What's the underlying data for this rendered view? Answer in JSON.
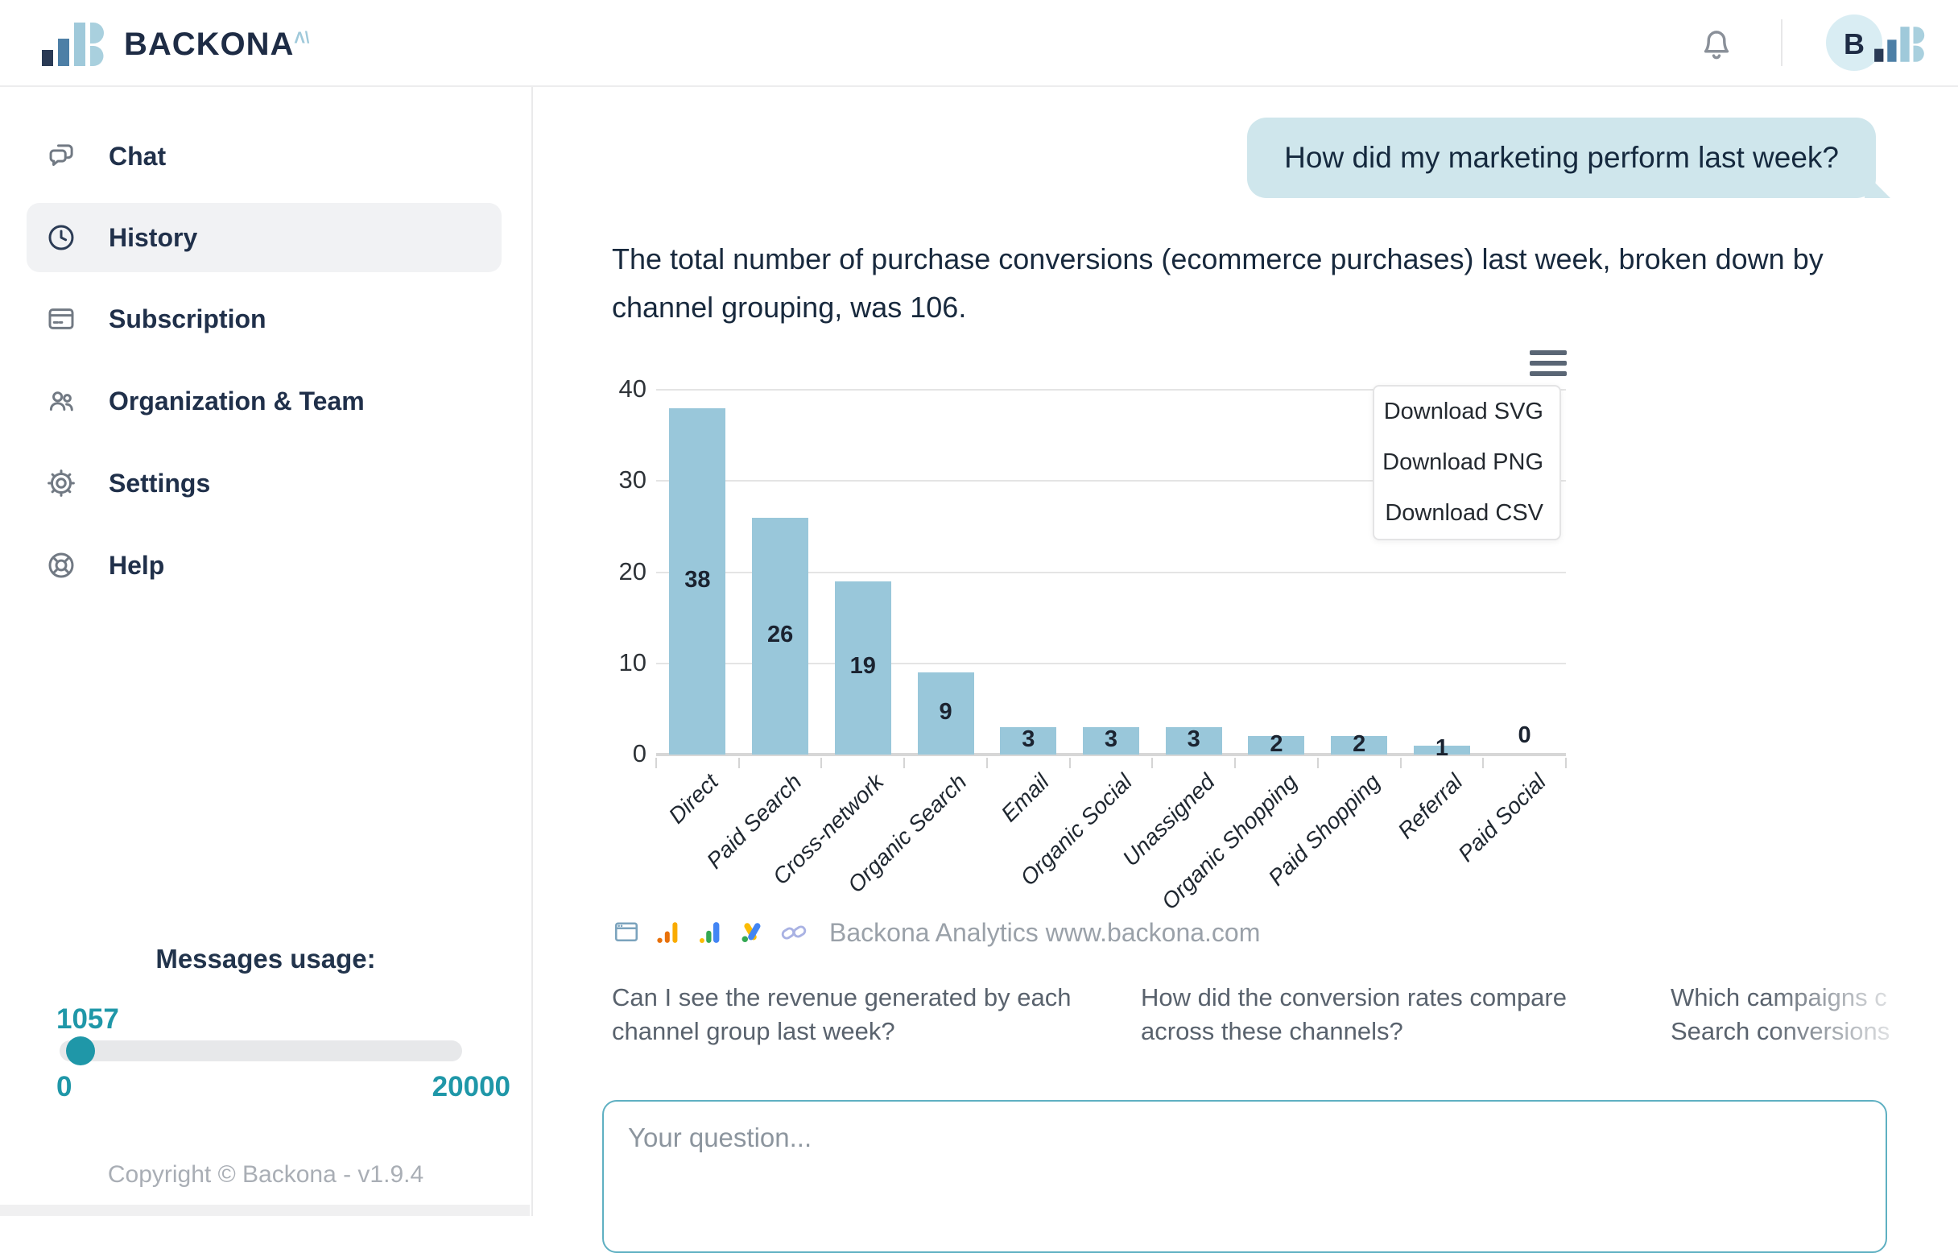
{
  "header": {
    "brand": "BACKONA",
    "brand_sup": "Λ\\",
    "avatar_initial": "B"
  },
  "sidebar": {
    "items": [
      {
        "label": "Chat",
        "icon": "chat-bubbles-icon",
        "active": false
      },
      {
        "label": "History",
        "icon": "clock-icon",
        "active": true
      },
      {
        "label": "Subscription",
        "icon": "credit-card-icon",
        "active": false
      },
      {
        "label": "Organization & Team",
        "icon": "users-icon",
        "active": false
      },
      {
        "label": "Settings",
        "icon": "gear-icon",
        "active": false
      },
      {
        "label": "Help",
        "icon": "lifebuoy-icon",
        "active": false
      }
    ],
    "usage": {
      "title": "Messages usage:",
      "current": "1057",
      "current_num": 1057,
      "min": "0",
      "max": "20000",
      "max_num": 20000
    },
    "copyright": "Copyright © Backona - v1.9.4"
  },
  "chat": {
    "user_message": "How did my marketing perform last week?",
    "bot_message": "The total number of purchase conversions (ecommerce purchases) last week, broken down by channel grouping, was 106.",
    "suggestions": [
      {
        "line1": "Can I see the revenue generated by each",
        "line2": "channel group last week?"
      },
      {
        "line1": "How did the conversion rates compare",
        "line2": "across these channels?"
      },
      {
        "line1": "Which campaigns c",
        "line2": "Search conversions",
        "truncated": true
      }
    ],
    "input_placeholder": "Your question..."
  },
  "chart_data": {
    "type": "bar",
    "title": "",
    "xlabel": "",
    "ylabel": "",
    "categories": [
      "Direct",
      "Paid Search",
      "Cross-network",
      "Organic Search",
      "Email",
      "Organic Social",
      "Unassigned",
      "Organic Shopping",
      "Paid Shopping",
      "Referral",
      "Paid Social"
    ],
    "values": [
      38,
      26,
      19,
      9,
      3,
      3,
      3,
      2,
      2,
      1,
      0
    ],
    "ylim": [
      0,
      40
    ],
    "yticks": [
      0,
      10,
      20,
      30,
      40
    ],
    "grid": true,
    "legend": false,
    "bar_color": "#99c7da",
    "menu": {
      "items": [
        "Download SVG",
        "Download PNG",
        "Download CSV"
      ]
    },
    "attribution": "Backona Analytics www.backona.com"
  },
  "colors": {
    "accent_teal": "#1f97a8",
    "bar_fill": "#99c7da",
    "bubble_bg": "#cfe6ec",
    "navy_text": "#1e2c45",
    "gray_text": "#9aa1a9",
    "input_border": "#5fb0c2"
  }
}
